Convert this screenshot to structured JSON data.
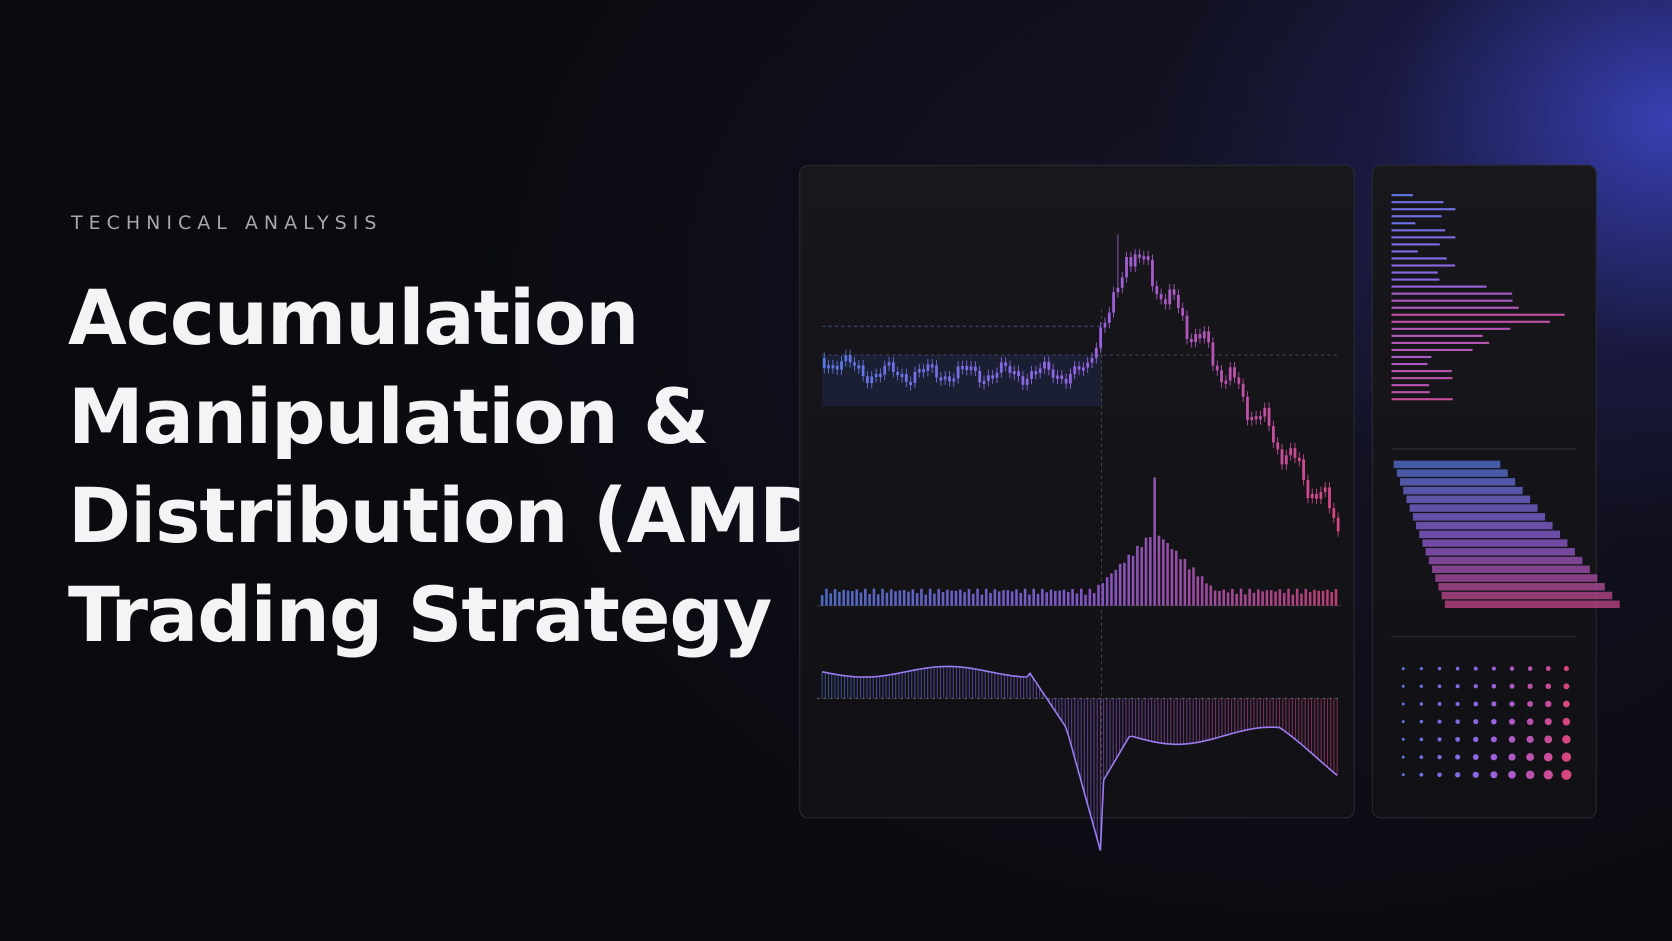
{
  "eyebrow": "TECHNICAL ANALYSIS",
  "title": {
    "lines": [
      "Accumulation",
      "Manipulation &",
      "Distribution (AMD)",
      "Trading Strategy"
    ]
  }
}
